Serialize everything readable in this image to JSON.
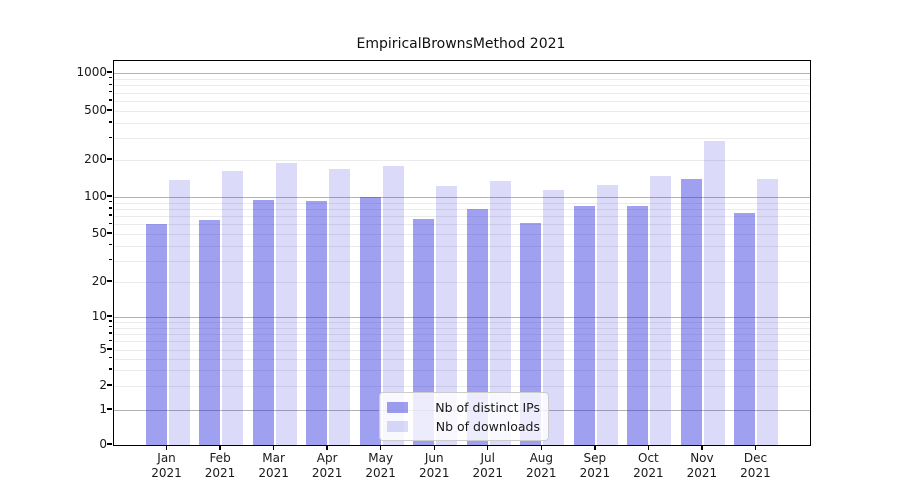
{
  "chart_data": {
    "type": "bar",
    "title": "EmpiricalBrownsMethod 2021",
    "year": "2021",
    "months": [
      "Jan",
      "Feb",
      "Mar",
      "Apr",
      "May",
      "Jun",
      "Jul",
      "Aug",
      "Sep",
      "Oct",
      "Nov",
      "Dec"
    ],
    "categories": [
      "Jan 2021",
      "Feb 2021",
      "Mar 2021",
      "Apr 2021",
      "May 2021",
      "Jun 2021",
      "Jul 2021",
      "Aug 2021",
      "Sep 2021",
      "Oct 2021",
      "Nov 2021",
      "Dec 2021"
    ],
    "series": [
      {
        "name": "Nb of distinct IPs",
        "color": "rgba(44,44,222,0.45)",
        "values": [
          60,
          65,
          95,
          92,
          100,
          66,
          80,
          62,
          84,
          84,
          140,
          74
        ]
      },
      {
        "name": "Nb of downloads",
        "color": "rgba(44,44,222,0.17)",
        "values": [
          138,
          163,
          188,
          170,
          180,
          123,
          135,
          113,
          126,
          148,
          285,
          140
        ]
      }
    ],
    "y_axis": {
      "scale": "symlog",
      "tick_labels": [
        0,
        1,
        2,
        5,
        10,
        20,
        50,
        100,
        200,
        500,
        1000
      ],
      "ylim": [
        0,
        1500
      ]
    },
    "grid": "on",
    "legend_position": "lower-center",
    "colors": {
      "bar_dark_flat": "#a0a0f0",
      "bar_light_flat": "#dcdcf8",
      "major_grid": "#b3b3b3",
      "minor_grid": "#ebebeb"
    }
  }
}
